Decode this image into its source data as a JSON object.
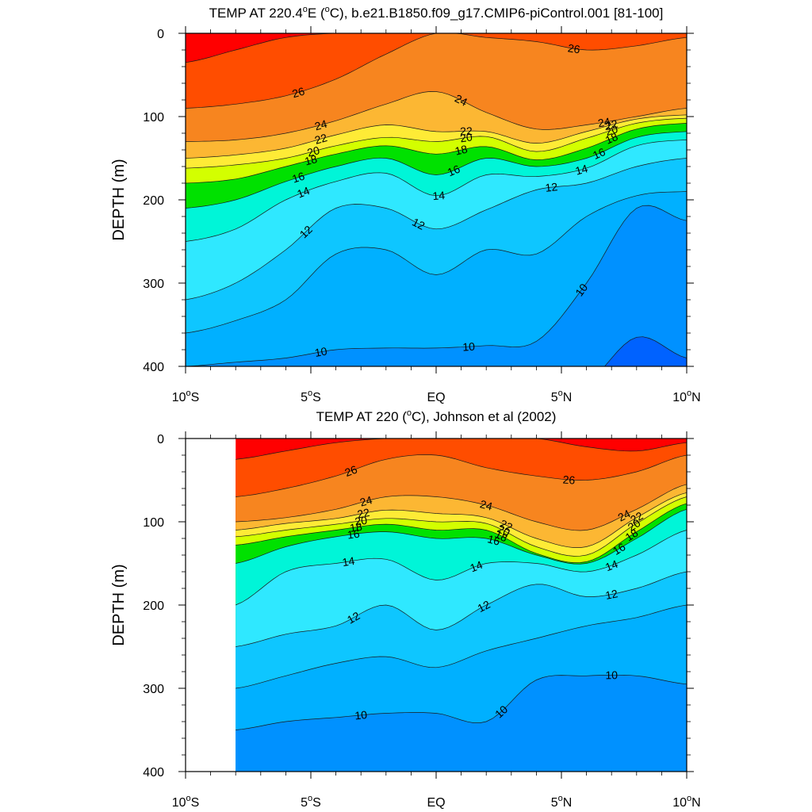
{
  "chart_data": [
    {
      "type": "contour",
      "title": "TEMP AT 220.4°E (°C), b.e21.B1850.f09_g17.CMIP6-piControl.001 [81-100]",
      "title_parts": {
        "pre": "TEMP AT 220.4",
        "deg1": "o",
        "mid": "E (",
        "deg2": "o",
        "post": "C), b.e21.B1850.f09_g17.CMIP6-piControl.001 [81-100]"
      },
      "xlabel": "",
      "ylabel": "DEPTH (m)",
      "xlim": [
        -10,
        10
      ],
      "ylim": [
        0,
        400
      ],
      "y_reversed": true,
      "x_ticks": [
        {
          "value": -10,
          "label": "10",
          "deg": "o",
          "hemi": "S"
        },
        {
          "value": -5,
          "label": "5",
          "deg": "o",
          "hemi": "S"
        },
        {
          "value": 0,
          "label": "EQ",
          "deg": "",
          "hemi": ""
        },
        {
          "value": 5,
          "label": "5",
          "deg": "o",
          "hemi": "N"
        },
        {
          "value": 10,
          "label": "10",
          "deg": "o",
          "hemi": "N"
        }
      ],
      "y_ticks": [
        "0",
        "100",
        "200",
        "300",
        "400"
      ],
      "data_xlim": [
        -10,
        10
      ],
      "isotherm_depths": {
        "lat": [
          -10,
          -8,
          -6,
          -4,
          -2,
          0,
          2,
          4,
          6,
          8,
          10
        ],
        "levels": [
          {
            "t": 27,
            "d": [
              35,
              20,
              5,
              0,
              0,
              0,
              0,
              0,
              0,
              0,
              0
            ]
          },
          {
            "t": 26,
            "d": [
              90,
              85,
              75,
              55,
              25,
              0,
              5,
              10,
              20,
              15,
              5
            ]
          },
          {
            "t": 24,
            "d": [
              130,
              128,
              120,
              105,
              85,
              70,
              95,
              115,
              110,
              100,
              90
            ]
          },
          {
            "t": 22,
            "d": [
              150,
              146,
              138,
              122,
              110,
              118,
              118,
              132,
              118,
              103,
              98
            ]
          },
          {
            "t": 20,
            "d": [
              162,
              158,
              150,
              135,
              125,
              130,
              124,
              142,
              126,
              108,
              102
            ]
          },
          {
            "t": 18,
            "d": [
              180,
              175,
              160,
              145,
              135,
              145,
              136,
              152,
              138,
              115,
              108
            ]
          },
          {
            "t": 16,
            "d": [
              210,
              200,
              178,
              160,
              150,
              170,
              150,
              160,
              150,
              125,
              118
            ]
          },
          {
            "t": 14,
            "d": [
              250,
              235,
              200,
              178,
              168,
              195,
              170,
              172,
              162,
              135,
              128
            ]
          },
          {
            "t": 12,
            "d": [
              320,
              300,
              260,
              210,
              210,
              235,
              212,
              188,
              180,
              160,
              150
            ]
          },
          {
            "t": 11,
            "d": [
              360,
              345,
              320,
              265,
              260,
              290,
              260,
              265,
              220,
              195,
              190
            ]
          },
          {
            "t": 10,
            "d": [
              400,
              395,
              390,
              380,
              378,
              378,
              375,
              370,
              300,
              210,
              225
            ]
          },
          {
            "t": 9,
            "d": [
              430,
              430,
              430,
              430,
              430,
              430,
              430,
              430,
              420,
              365,
              390
            ]
          }
        ]
      },
      "contour_labels": [
        {
          "t": "26",
          "lat": -5.5
        },
        {
          "t": "24",
          "lat": -4.6
        },
        {
          "t": "22",
          "lat": -4.6
        },
        {
          "t": "20",
          "lat": -4.9
        },
        {
          "t": "18",
          "lat": -5.0
        },
        {
          "t": "16",
          "lat": -5.5
        },
        {
          "t": "14",
          "lat": -5.3
        },
        {
          "t": "12",
          "lat": -5.2
        },
        {
          "t": "10",
          "lat": -4.6
        },
        {
          "t": "24",
          "lat": 1.0
        },
        {
          "t": "22",
          "lat": 1.2
        },
        {
          "t": "20",
          "lat": 1.2
        },
        {
          "t": "18",
          "lat": 1.0
        },
        {
          "t": "16",
          "lat": 0.7
        },
        {
          "t": "14",
          "lat": 0.1
        },
        {
          "t": "12",
          "lat": -0.7
        },
        {
          "t": "10",
          "lat": 1.3
        },
        {
          "t": "26",
          "lat": 5.5
        },
        {
          "t": "24",
          "lat": 6.7
        },
        {
          "t": "22",
          "lat": 7.0
        },
        {
          "t": "20",
          "lat": 7.0
        },
        {
          "t": "18",
          "lat": 7.0
        },
        {
          "t": "16",
          "lat": 6.5
        },
        {
          "t": "14",
          "lat": 5.8
        },
        {
          "t": "12",
          "lat": 4.6
        },
        {
          "t": "10",
          "lat": 5.8
        }
      ]
    },
    {
      "type": "contour",
      "title": "TEMP AT 220 (°C), Johnson et al (2002)",
      "title_parts": {
        "pre": "TEMP AT 220 (",
        "deg1": "o",
        "mid": "C), Johnson et al (2002)",
        "deg2": "",
        "post": ""
      },
      "xlabel": "",
      "ylabel": "DEPTH (m)",
      "xlim": [
        -10,
        10
      ],
      "ylim": [
        0,
        400
      ],
      "y_reversed": true,
      "x_ticks": [
        {
          "value": -10,
          "label": "10",
          "deg": "o",
          "hemi": "S"
        },
        {
          "value": -5,
          "label": "5",
          "deg": "o",
          "hemi": "S"
        },
        {
          "value": 0,
          "label": "EQ",
          "deg": "",
          "hemi": ""
        },
        {
          "value": 5,
          "label": "5",
          "deg": "o",
          "hemi": "N"
        },
        {
          "value": 10,
          "label": "10",
          "deg": "o",
          "hemi": "N"
        }
      ],
      "y_ticks": [
        "0",
        "100",
        "200",
        "300",
        "400"
      ],
      "data_xlim": [
        -8,
        10
      ],
      "isotherm_depths": {
        "lat": [
          -8,
          -6,
          -4,
          -2,
          0,
          2,
          4,
          6,
          8,
          10
        ],
        "levels": [
          {
            "t": 27,
            "d": [
              25,
              15,
              5,
              0,
              0,
              0,
              0,
              10,
              15,
              5
            ]
          },
          {
            "t": 26,
            "d": [
              70,
              60,
              45,
              25,
              20,
              35,
              45,
              50,
              40,
              20
            ]
          },
          {
            "t": 24,
            "d": [
              100,
              95,
              85,
              70,
              70,
              80,
              100,
              110,
              85,
              55
            ]
          },
          {
            "t": 22,
            "d": [
              110,
              102,
              96,
              86,
              90,
              95,
              120,
              130,
              95,
              65
            ]
          },
          {
            "t": 20,
            "d": [
              118,
              110,
              103,
              96,
              100,
              102,
              130,
              140,
              102,
              70
            ]
          },
          {
            "t": 18,
            "d": [
              128,
              118,
              110,
              103,
              110,
              110,
              138,
              148,
              112,
              78
            ]
          },
          {
            "t": 16,
            "d": [
              150,
              130,
              118,
              112,
              120,
              120,
              140,
              150,
              120,
              85
            ]
          },
          {
            "t": 14,
            "d": [
              200,
              160,
              150,
              145,
              170,
              150,
              150,
              160,
              140,
              110
            ]
          },
          {
            "t": 12,
            "d": [
              250,
              235,
              225,
              200,
              230,
              200,
              175,
              190,
              180,
              160
            ]
          },
          {
            "t": 11,
            "d": [
              300,
              285,
              270,
              262,
              275,
              255,
              240,
              225,
              215,
              200
            ]
          },
          {
            "t": 10,
            "d": [
              350,
              340,
              335,
              330,
              330,
              340,
              290,
              285,
              285,
              295
            ]
          },
          {
            "t": 9,
            "d": [
              420,
              420,
              420,
              420,
              420,
              420,
              420,
              420,
              420,
              420
            ]
          }
        ]
      },
      "contour_labels": [
        {
          "t": "26",
          "lat": -3.4
        },
        {
          "t": "24",
          "lat": -2.8
        },
        {
          "t": "22",
          "lat": -2.9
        },
        {
          "t": "20",
          "lat": -3.0
        },
        {
          "t": "18",
          "lat": -3.2
        },
        {
          "t": "16",
          "lat": -3.3
        },
        {
          "t": "14",
          "lat": -3.5
        },
        {
          "t": "12",
          "lat": -3.3
        },
        {
          "t": "10",
          "lat": -3.0
        },
        {
          "t": "24",
          "lat": 2.0
        },
        {
          "t": "22",
          "lat": 2.8
        },
        {
          "t": "20",
          "lat": 2.7
        },
        {
          "t": "18",
          "lat": 2.6
        },
        {
          "t": "16",
          "lat": 2.3
        },
        {
          "t": "14",
          "lat": 1.6
        },
        {
          "t": "12",
          "lat": 1.9
        },
        {
          "t": "10",
          "lat": 2.6
        },
        {
          "t": "26",
          "lat": 5.3
        },
        {
          "t": "24",
          "lat": 7.5
        },
        {
          "t": "22",
          "lat": 8.0
        },
        {
          "t": "20",
          "lat": 7.9
        },
        {
          "t": "18",
          "lat": 7.8
        },
        {
          "t": "16",
          "lat": 7.3
        },
        {
          "t": "14",
          "lat": 7.0
        },
        {
          "t": "12",
          "lat": 7.0
        },
        {
          "t": "10",
          "lat": 7.0
        }
      ]
    }
  ],
  "colors": {
    "band_colors": {
      "warmest": "#ff0000",
      "27": "#ff4d00",
      "26": "#f7851f",
      "25": "#fa9a28",
      "24": "#fcb733",
      "23": "#fdd03a",
      "22": "#feeb36",
      "21": "#fffd00",
      "20": "#d3ff00",
      "19": "#96f000",
      "18": "#00e100",
      "17": "#00ea96",
      "16": "#00f5d8",
      "15": "#00fbff",
      "14": "#2fe8ff",
      "13": "#22d8ff",
      "12": "#0ec6ff",
      "11": "#00b0ff",
      "10": "#0091ff",
      "9": "#0062ff",
      "coldest": "#0040ff"
    },
    "contour_line": "#1a1a1a"
  }
}
